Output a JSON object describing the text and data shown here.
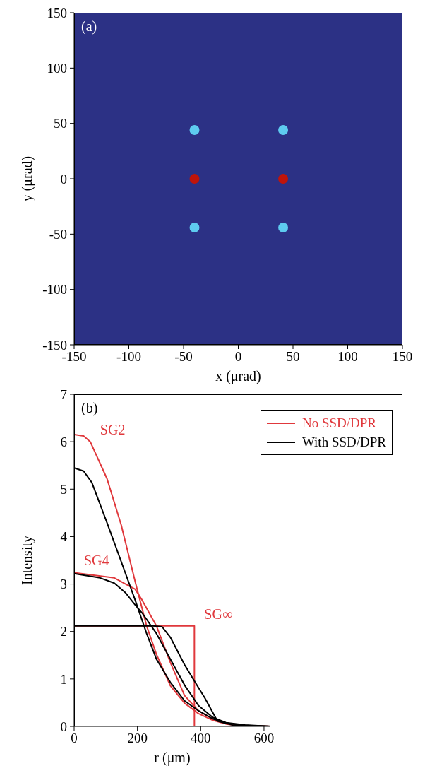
{
  "chart_data": [
    {
      "type": "scatter",
      "xlabel": "x (μrad)",
      "ylabel": "y (μrad)",
      "annotations": [
        "(a)"
      ],
      "xlim": [
        -150,
        150
      ],
      "xticks": [
        -150,
        -100,
        -50,
        0,
        50,
        100,
        150
      ],
      "ylim": [
        -150,
        150
      ],
      "yticks": [
        -150,
        -100,
        -50,
        0,
        50,
        100,
        150
      ],
      "series": [
        {
          "color": "#c0140a",
          "x": [
            -40,
            41
          ],
          "values": [
            0,
            0
          ]
        },
        {
          "color": "#5ecbf0",
          "x": [
            -40,
            41,
            -40,
            41
          ],
          "values": [
            44,
            44,
            -44,
            -44
          ]
        }
      ],
      "marker": "circle",
      "grid": false,
      "legend": false
    },
    {
      "type": "line",
      "xlabel": "r (μm)",
      "ylabel": "Intensity",
      "xlim": [
        0,
        620
      ],
      "xticks": [
        0,
        200,
        400,
        600
      ],
      "ylim": [
        0,
        7
      ],
      "yticks": [
        0,
        1,
        2,
        3,
        4,
        5,
        6,
        7
      ],
      "grid": false,
      "legend": "top right",
      "line_style": "solid",
      "marker": "none",
      "annotations": [
        "(b)",
        {
          "text": "SG2",
          "x": 51,
          "y": 6.0
        },
        {
          "text": "SG4",
          "x": 0,
          "y": 3.24
        },
        {
          "text": "SG∞",
          "x": 380,
          "y": 2.12
        }
      ],
      "series": [
        {
          "name": "No SSD/DPR",
          "color": "#e0383c",
          "x": [
            0,
            30,
            51,
            104,
            149,
            193,
            229,
            260,
            304,
            349,
            393,
            438,
            480,
            520,
            620
          ],
          "values": [
            6.15,
            6.12,
            6.0,
            5.22,
            4.24,
            3.05,
            2.12,
            1.52,
            0.86,
            0.49,
            0.27,
            0.13,
            0.05,
            0.02,
            0
          ]
        },
        {
          "color": "#e0383c",
          "x": [
            0,
            127,
            171,
            193,
            215,
            260,
            304,
            349,
            393,
            438,
            480,
            540,
            620
          ],
          "values": [
            3.24,
            3.13,
            2.97,
            2.89,
            2.66,
            2.12,
            1.35,
            0.65,
            0.33,
            0.16,
            0.07,
            0.02,
            0
          ]
        },
        {
          "color": "#e0383c",
          "x": [
            0,
            380,
            380,
            620
          ],
          "values": [
            2.12,
            2.12,
            0,
            0
          ]
        },
        {
          "name": "With SSD/DPR",
          "color": "#000000",
          "x": [
            0,
            30,
            56,
            104,
            149,
            193,
            229,
            260,
            304,
            349,
            393,
            438,
            480,
            540,
            620
          ],
          "values": [
            5.45,
            5.38,
            5.14,
            4.29,
            3.47,
            2.66,
            1.96,
            1.42,
            0.93,
            0.54,
            0.33,
            0.16,
            0.07,
            0.02,
            0
          ]
        },
        {
          "color": "#000000",
          "x": [
            0,
            82,
            127,
            162,
            193,
            215,
            260,
            304,
            349,
            393,
            438,
            480,
            540,
            620
          ],
          "values": [
            3.22,
            3.13,
            3.02,
            2.82,
            2.56,
            2.39,
            1.96,
            1.42,
            0.87,
            0.44,
            0.19,
            0.08,
            0.03,
            0
          ]
        },
        {
          "color": "#000000",
          "x": [
            0,
            250,
            278,
            304,
            349,
            378,
            413,
            453,
            500,
            620
          ],
          "values": [
            2.12,
            2.12,
            2.1,
            1.88,
            1.3,
            0.98,
            0.6,
            0.11,
            0.03,
            0
          ]
        }
      ]
    }
  ]
}
